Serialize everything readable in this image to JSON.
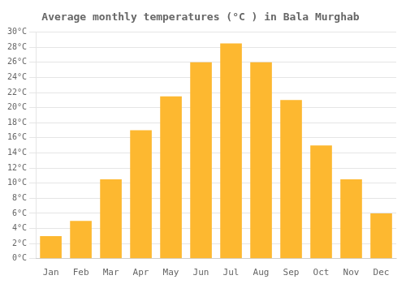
{
  "chart_data": {
    "type": "bar",
    "title": "Average monthly temperatures (°C ) in Bala Murghab",
    "categories": [
      "Jan",
      "Feb",
      "Mar",
      "Apr",
      "May",
      "Jun",
      "Jul",
      "Aug",
      "Sep",
      "Oct",
      "Nov",
      "Dec"
    ],
    "values": [
      3,
      5,
      10.5,
      17,
      21.5,
      26,
      28.5,
      26,
      21,
      15,
      10.5,
      6
    ],
    "color": "#FDB830",
    "ylim": [
      0,
      30
    ],
    "yticks": [
      {
        "value": 0,
        "label": "0°C"
      },
      {
        "value": 2,
        "label": "2°C"
      },
      {
        "value": 4,
        "label": "4°C"
      },
      {
        "value": 6,
        "label": "6°C"
      },
      {
        "value": 8,
        "label": "8°C"
      },
      {
        "value": 10,
        "label": "10°C"
      },
      {
        "value": 12,
        "label": "12°C"
      },
      {
        "value": 14,
        "label": "14°C"
      },
      {
        "value": 16,
        "label": "16°C"
      },
      {
        "value": 18,
        "label": "18°C"
      },
      {
        "value": 20,
        "label": "20°C"
      },
      {
        "value": 22,
        "label": "22°C"
      },
      {
        "value": 24,
        "label": "24°C"
      },
      {
        "value": 26,
        "label": "26°C"
      },
      {
        "value": 28,
        "label": "28°C"
      },
      {
        "value": 30,
        "label": "30°C"
      }
    ],
    "grid": "y"
  }
}
